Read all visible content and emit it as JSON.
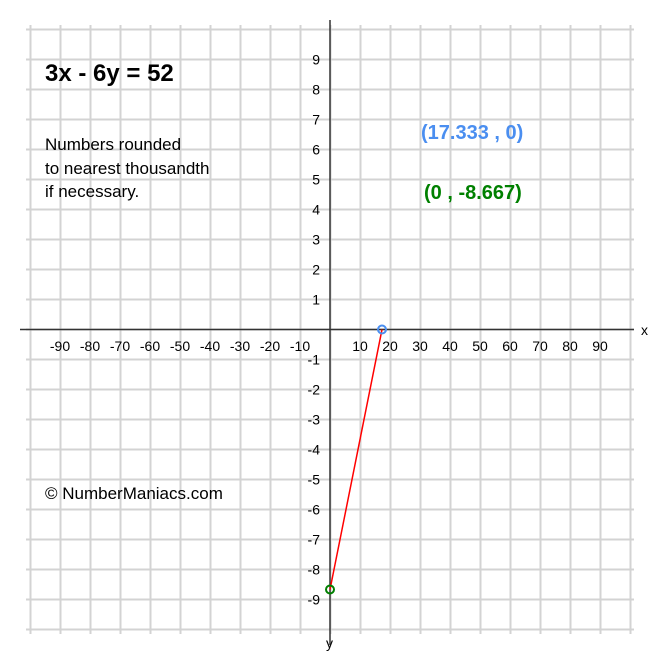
{
  "chart_data": {
    "type": "line",
    "title": "3x - 6y = 52",
    "note": [
      "Numbers rounded",
      "to nearest thousandth",
      "if necessary."
    ],
    "copyright": "© NumberManiacs.com",
    "xlabel": "x",
    "ylabel": "y",
    "xlim": [
      -100,
      100
    ],
    "ylim": [
      -10,
      10
    ],
    "x_ticks": [
      -90,
      -80,
      -70,
      -60,
      -50,
      -40,
      -30,
      -20,
      -10,
      10,
      20,
      30,
      40,
      50,
      60,
      70,
      80,
      90
    ],
    "y_ticks": [
      9,
      8,
      7,
      6,
      5,
      4,
      3,
      2,
      1,
      -1,
      -2,
      -3,
      -4,
      -5,
      -6,
      -7,
      -8,
      -9
    ],
    "grid": true,
    "series": [
      {
        "points": [
          [
            17.333,
            0
          ],
          [
            0,
            -8.667
          ]
        ],
        "color": "#ff0000"
      }
    ],
    "points": [
      {
        "x": 17.333,
        "y": 0,
        "label": "(17.333 , 0)",
        "color": "#4a8ef0"
      },
      {
        "x": 0,
        "y": -8.667,
        "label": "(0 , -8.667)",
        "color": "#008000"
      }
    ]
  }
}
